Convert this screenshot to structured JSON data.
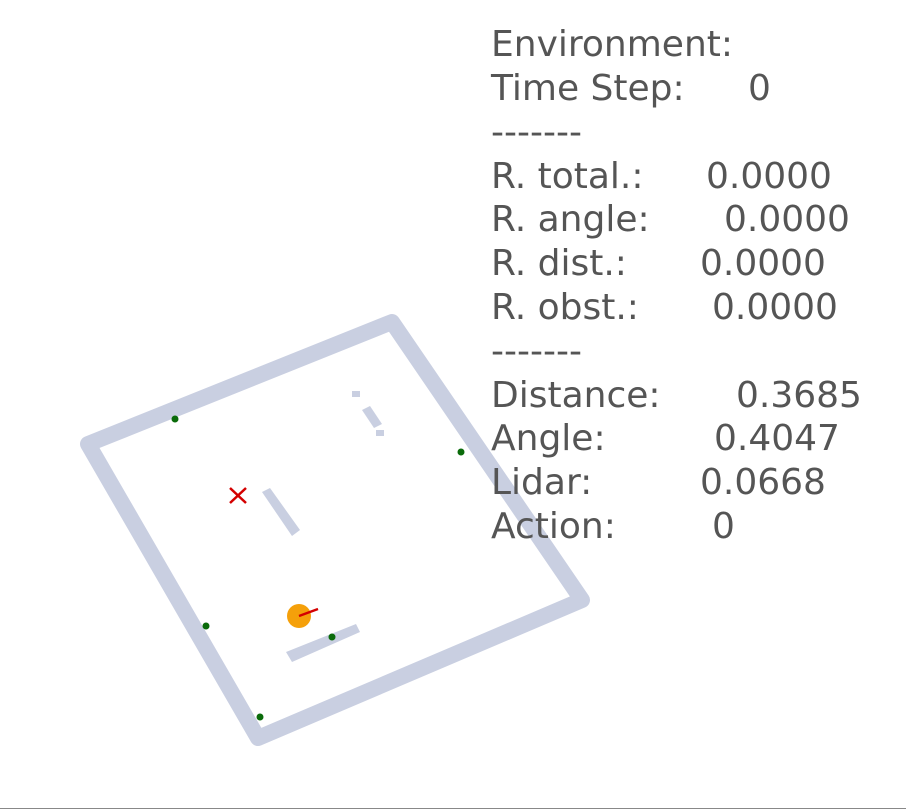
{
  "panel": {
    "title": "Environment:",
    "lines": [
      {
        "label": "Time Step:",
        "value": "0"
      },
      {
        "label": "-------"
      },
      {
        "label": "R. total.:",
        "value": "0.0000"
      },
      {
        "label": "R. angle:",
        "value": "0.0000"
      },
      {
        "label": "R. dist.:",
        "value": "0.0000"
      },
      {
        "label": "R. obst.:",
        "value": "0.0000"
      },
      {
        "label": "-------"
      },
      {
        "label": "Distance:",
        "value": "0.3685"
      },
      {
        "label": "Angle:",
        "value": "0.4047"
      },
      {
        "label": "Lidar:",
        "value": "0.0668"
      },
      {
        "label": "Action:",
        "value": "0"
      }
    ]
  }
}
